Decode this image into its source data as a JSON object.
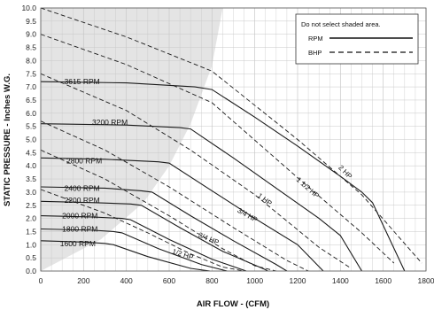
{
  "chart_data": {
    "type": "line",
    "xlabel": "AIR FLOW - (CFM)",
    "ylabel": "STATIC PRESSURE - Inches W.G.",
    "xlim": [
      0,
      1800
    ],
    "ylim": [
      0,
      10
    ],
    "x_ticks": [
      "0",
      "200",
      "400",
      "600",
      "800",
      "1000",
      "1200",
      "1400",
      "1600",
      "1800"
    ],
    "y_ticks": [
      "0.0",
      "0.5",
      "1.0",
      "1.5",
      "2.0",
      "2.5",
      "3.0",
      "3.5",
      "4.0",
      "4.5",
      "5.0",
      "5.5",
      "6.0",
      "6.5",
      "7.0",
      "7.5",
      "8.0",
      "8.5",
      "9.0",
      "9.5",
      "10.0"
    ],
    "grid": true,
    "colors": {
      "shade": "#e4e4e4",
      "grid": "#c8c8c8",
      "line": "#1a1a1a"
    },
    "shaded_region_boundary": {
      "x": [
        0,
        280,
        480,
        600,
        700,
        800,
        850
      ],
      "y": [
        0.0,
        1.2,
        2.6,
        4.0,
        5.6,
        7.8,
        10.0
      ]
    },
    "legend": {
      "position": "top-right",
      "note": "Do not select shaded area.",
      "items": [
        {
          "label": "RPM",
          "style": "solid"
        },
        {
          "label": "BHP",
          "style": "dashed"
        }
      ]
    },
    "rpm_series": [
      {
        "name": "3615 RPM",
        "label_pos": {
          "x": 110,
          "y": 7.2
        },
        "x": [
          0,
          400,
          720,
          800,
          1000,
          1200,
          1400,
          1500,
          1550,
          1700
        ],
        "y": [
          7.2,
          7.15,
          7.0,
          6.9,
          5.85,
          4.75,
          3.6,
          3.0,
          2.6,
          0.0
        ]
      },
      {
        "name": "3200 RPM",
        "label_pos": {
          "x": 240,
          "y": 5.65
        },
        "x": [
          0,
          400,
          650,
          700,
          900,
          1100,
          1300,
          1400,
          1500
        ],
        "y": [
          5.6,
          5.55,
          5.45,
          5.4,
          4.3,
          3.15,
          2.0,
          1.35,
          0.0
        ]
      },
      {
        "name": "2800 RPM",
        "label_pos": {
          "x": 120,
          "y": 4.2
        },
        "x": [
          0,
          300,
          550,
          600,
          800,
          1000,
          1200,
          1320
        ],
        "y": [
          4.3,
          4.25,
          4.15,
          4.1,
          3.05,
          2.0,
          1.0,
          0.0
        ]
      },
      {
        "name": "2400 RPM",
        "label_pos": {
          "x": 110,
          "y": 3.15
        },
        "x": [
          0,
          300,
          470,
          520,
          700,
          900,
          1100,
          1150
        ],
        "y": [
          3.2,
          3.15,
          3.05,
          3.0,
          2.1,
          1.15,
          0.25,
          0.0
        ]
      },
      {
        "name": "2200 RPM",
        "label_pos": {
          "x": 110,
          "y": 2.7
        },
        "x": [
          0,
          250,
          420,
          470,
          650,
          850,
          1050,
          1060
        ],
        "y": [
          2.65,
          2.6,
          2.55,
          2.5,
          1.65,
          0.75,
          0.05,
          0.0
        ]
      },
      {
        "name": "2000 RPM",
        "label_pos": {
          "x": 100,
          "y": 2.1
        },
        "x": [
          0,
          250,
          380,
          420,
          600,
          800,
          960
        ],
        "y": [
          2.1,
          2.05,
          2.0,
          1.95,
          1.2,
          0.45,
          0.0
        ]
      },
      {
        "name": "1800 RPM",
        "label_pos": {
          "x": 100,
          "y": 1.6
        },
        "x": [
          0,
          250,
          340,
          380,
          550,
          750,
          870
        ],
        "y": [
          1.6,
          1.55,
          1.5,
          1.45,
          0.85,
          0.25,
          0.0
        ]
      },
      {
        "name": "1600 RPM",
        "label_pos": {
          "x": 90,
          "y": 1.05
        },
        "x": [
          0,
          200,
          300,
          340,
          500,
          700,
          790
        ],
        "y": [
          1.15,
          1.1,
          1.05,
          1.0,
          0.55,
          0.1,
          0.0
        ]
      }
    ],
    "bhp_series": [
      {
        "name": "2 HP",
        "label_pos": {
          "x": 1415,
          "y": 3.7
        },
        "x": [
          0,
          400,
          800,
          1200,
          1500,
          1780
        ],
        "y": [
          10.0,
          8.9,
          7.6,
          5.0,
          2.9,
          0.3
        ]
      },
      {
        "name": "1 1/2 HP",
        "label_pos": {
          "x": 1240,
          "y": 3.1
        },
        "x": [
          0,
          400,
          800,
          1200,
          1500,
          1650
        ],
        "y": [
          9.0,
          7.85,
          6.4,
          3.55,
          1.45,
          0.3
        ]
      },
      {
        "name": "1 HP",
        "label_pos": {
          "x": 1040,
          "y": 2.65
        },
        "x": [
          0,
          400,
          700,
          1000,
          1300,
          1450
        ],
        "y": [
          7.5,
          6.1,
          4.6,
          2.9,
          0.9,
          0.1
        ]
      },
      {
        "name": "3/4 HP",
        "label_pos": {
          "x": 960,
          "y": 2.05
        },
        "x": [
          0,
          300,
          600,
          900,
          1150,
          1250
        ],
        "y": [
          5.7,
          4.6,
          3.2,
          1.65,
          0.4,
          0.0
        ]
      },
      {
        "name": "3/4 HP",
        "label_pos": {
          "x": 780,
          "y": 1.15
        },
        "x": [
          0,
          300,
          600,
          850,
          1000,
          1100
        ],
        "y": [
          4.6,
          3.5,
          2.1,
          0.85,
          0.2,
          0.0
        ]
      },
      {
        "name": "1/2 HP",
        "label_pos": {
          "x": 660,
          "y": 0.55
        },
        "x": [
          0,
          300,
          500,
          700,
          850,
          950
        ],
        "y": [
          3.1,
          2.2,
          1.45,
          0.65,
          0.15,
          0.0
        ]
      }
    ]
  }
}
